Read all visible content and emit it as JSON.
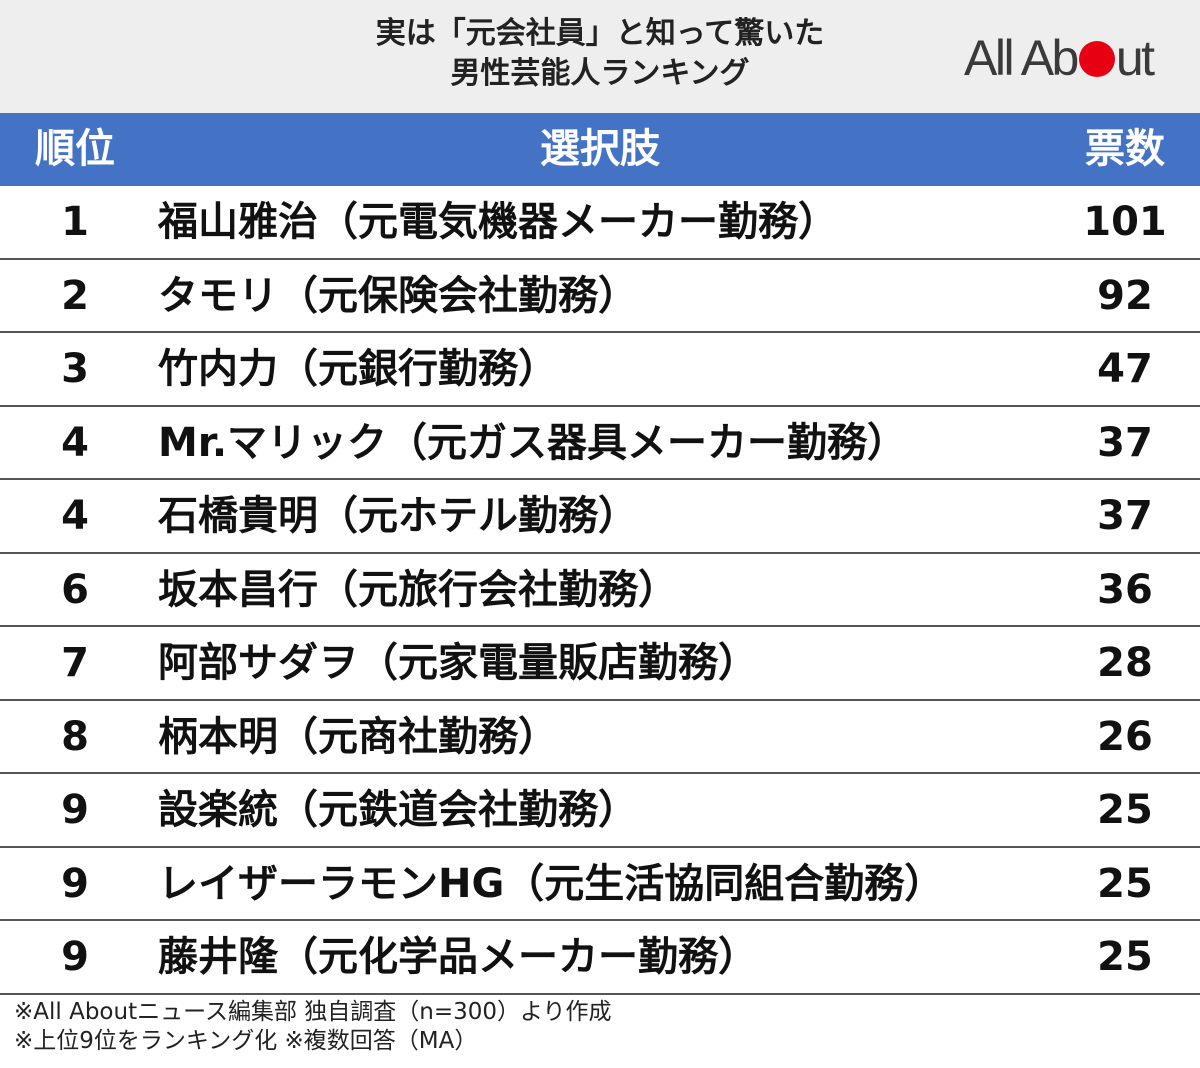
{
  "title_lines": [
    "実は「元会社員」と知って驚いた",
    "男性芸能人ランキング"
  ],
  "logo": {
    "text_before": "All Ab",
    "text_after": "ut",
    "dot_color": "#e60012"
  },
  "table": {
    "headers": {
      "rank": "順位",
      "choice": "選択肢",
      "votes": "票数"
    }
  },
  "chart_data": {
    "type": "table",
    "title": "実は「元会社員」と知って驚いた男性芸能人ランキング",
    "columns": [
      "順位",
      "選択肢",
      "票数"
    ],
    "rows": [
      {
        "rank": "1",
        "choice": "福山雅治（元電気機器メーカー勤務）",
        "votes": 101
      },
      {
        "rank": "2",
        "choice": "タモリ（元保険会社勤務）",
        "votes": 92
      },
      {
        "rank": "3",
        "choice": "竹内力（元銀行勤務）",
        "votes": 47
      },
      {
        "rank": "4",
        "choice": "Mr.マリック（元ガス器具メーカー勤務）",
        "votes": 37
      },
      {
        "rank": "4",
        "choice": "石橋貴明（元ホテル勤務）",
        "votes": 37
      },
      {
        "rank": "6",
        "choice": "坂本昌行（元旅行会社勤務）",
        "votes": 36
      },
      {
        "rank": "7",
        "choice": "阿部サダヲ（元家電量販店勤務）",
        "votes": 28
      },
      {
        "rank": "8",
        "choice": "柄本明（元商社勤務）",
        "votes": 26
      },
      {
        "rank": "9",
        "choice": "設楽統（元鉄道会社勤務）",
        "votes": 25
      },
      {
        "rank": "9",
        "choice": "レイザーラモンHG（元生活協同組合勤務）",
        "votes": 25
      },
      {
        "rank": "9",
        "choice": "藤井隆（元化学品メーカー勤務）",
        "votes": 25
      }
    ],
    "header_color": "#4472c4"
  },
  "footnotes": [
    "※All Aboutニュース編集部 独自調査（n=300）より作成",
    "※上位9位をランキング化 ※複数回答（MA）"
  ]
}
